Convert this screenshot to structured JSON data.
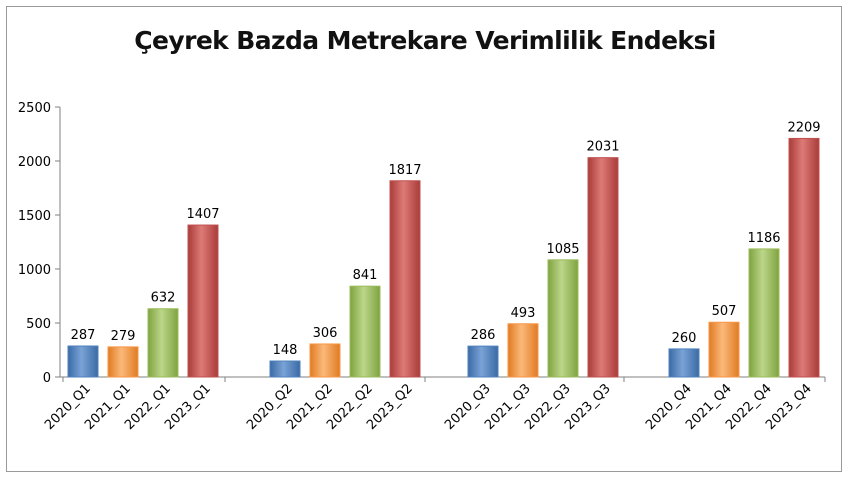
{
  "chart_data": {
    "type": "bar",
    "title": "Çeyrek Bazda Metrekare Verimlilik Endeksi",
    "xlabel": "",
    "ylabel": "",
    "ylim": [
      0,
      2500
    ],
    "yticks": [
      "0",
      "500",
      "1000",
      "1500",
      "2000",
      "2500"
    ],
    "grid": false,
    "legend": "none",
    "groups": [
      {
        "quarter": "Q1",
        "categories": [
          "2020_Q1",
          "2021_Q1",
          "2022_Q1",
          "2023_Q1"
        ],
        "values": [
          287,
          279,
          632,
          1407
        ]
      },
      {
        "quarter": "Q2",
        "categories": [
          "2020_Q2",
          "2021_Q2",
          "2022_Q2",
          "2023_Q2"
        ],
        "values": [
          148,
          306,
          841,
          1817
        ]
      },
      {
        "quarter": "Q3",
        "categories": [
          "2020_Q3",
          "2021_Q3",
          "2022_Q3",
          "2023_Q3"
        ],
        "values": [
          286,
          493,
          1085,
          2031
        ]
      },
      {
        "quarter": "Q4",
        "categories": [
          "2020_Q4",
          "2021_Q4",
          "2022_Q4",
          "2023_Q4"
        ],
        "values": [
          260,
          507,
          1186,
          2209
        ]
      }
    ],
    "colors": {
      "2020": "#4f81bd",
      "2021": "#f79646",
      "2022": "#9bbb59",
      "2023": "#c0504d"
    }
  }
}
